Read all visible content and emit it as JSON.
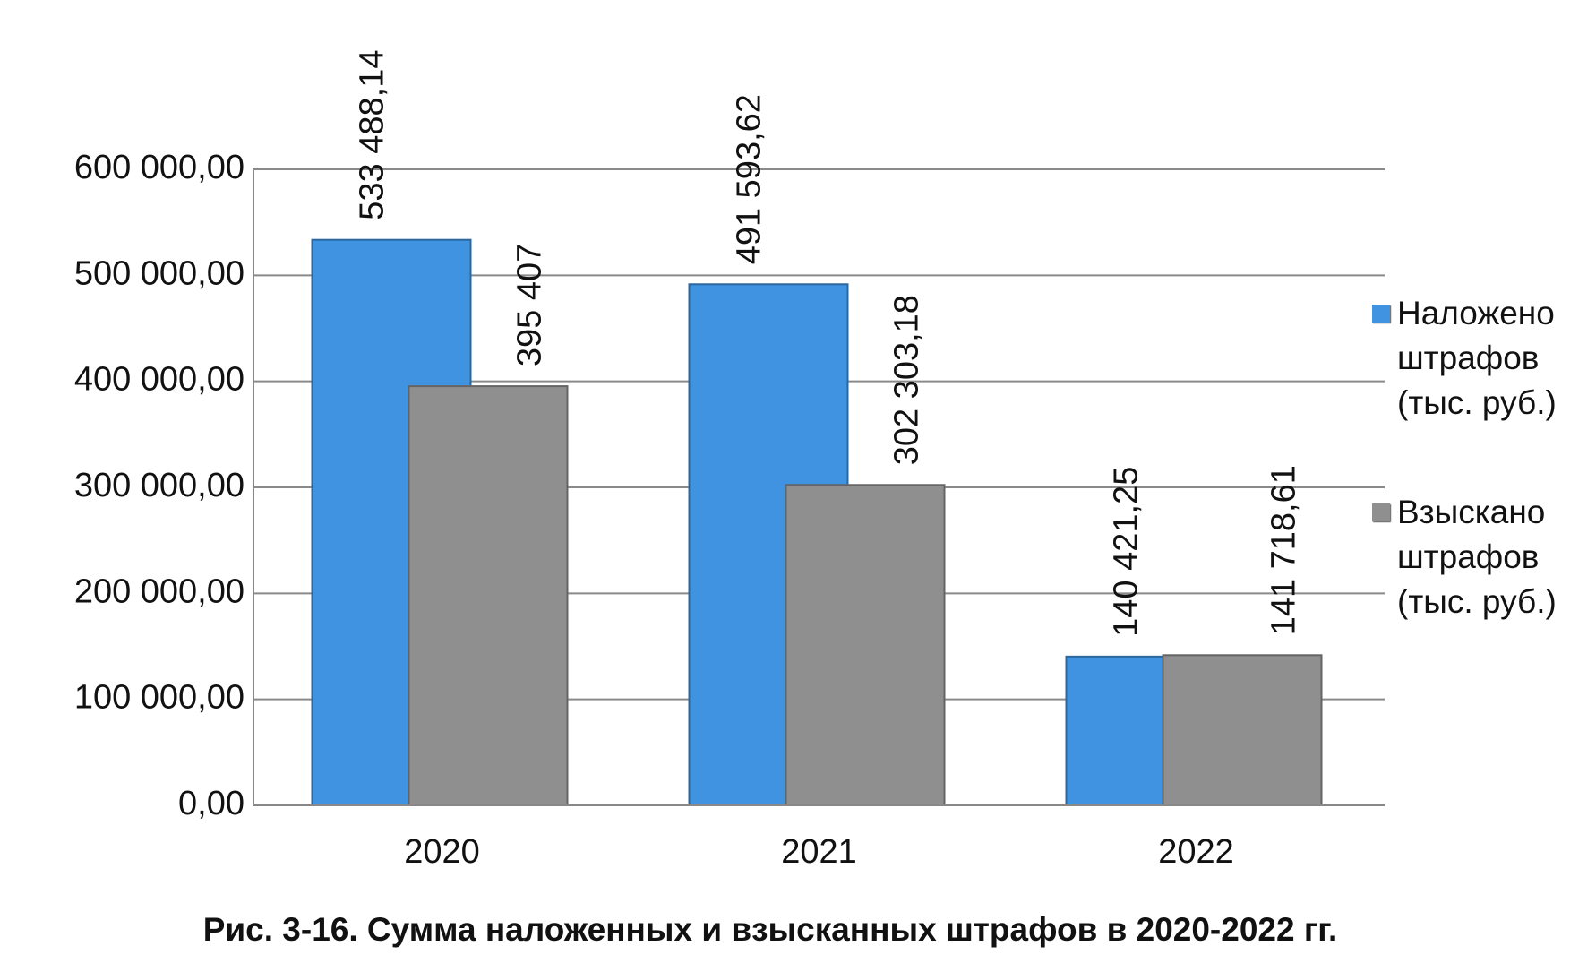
{
  "chart_data": {
    "type": "bar",
    "title": "Рис. 3-16. Сумма наложенных и взысканных штрафов в 2020-2022 гг.",
    "categories": [
      "2020",
      "2021",
      "2022"
    ],
    "series": [
      {
        "name": "Наложено штрафов (тыс. руб.)",
        "color": "#3f93e0",
        "values": [
          533488.14,
          491593.62,
          140421.25
        ],
        "value_labels": [
          "533 488,14",
          "491 593,62",
          "140 421,25"
        ]
      },
      {
        "name": "Взыскано штрафов (тыс. руб.)",
        "color": "#8f8f8f",
        "values": [
          395407,
          302303.18,
          141718.61
        ],
        "value_labels": [
          "395 407",
          "302 303,18",
          "141 718,61"
        ]
      }
    ],
    "ylim": [
      0,
      600000
    ],
    "yticks": [
      {
        "value": 0,
        "label": "0,00"
      },
      {
        "value": 100000,
        "label": "100 000,00"
      },
      {
        "value": 200000,
        "label": "200 000,00"
      },
      {
        "value": 300000,
        "label": "300 000,00"
      },
      {
        "value": 400000,
        "label": "400 000,00"
      },
      {
        "value": 500000,
        "label": "500 000,00"
      },
      {
        "value": 600000,
        "label": "600 000,00"
      }
    ],
    "grid": true,
    "legend": "right"
  }
}
